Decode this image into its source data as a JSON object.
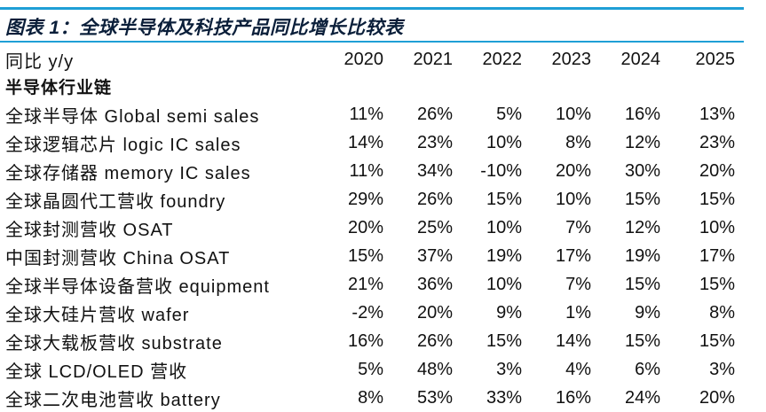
{
  "title": "图表 1：全球半导体及科技产品同比增长比较表",
  "header": {
    "label": "同比 y/y",
    "years": [
      "2020",
      "2021",
      "2022",
      "2023",
      "2024",
      "2025"
    ]
  },
  "section": "半导体行业链",
  "rows": [
    {
      "label": "全球半导体 Global semi sales",
      "values": [
        "11%",
        "26%",
        "5%",
        "10%",
        "16%",
        "13%"
      ]
    },
    {
      "label": "全球逻辑芯片 logic IC sales",
      "values": [
        "14%",
        "23%",
        "10%",
        "8%",
        "12%",
        "23%"
      ]
    },
    {
      "label": "全球存储器 memory IC sales",
      "values": [
        "11%",
        "34%",
        "-10%",
        "20%",
        "30%",
        "20%"
      ]
    },
    {
      "label": "全球晶圆代工营收 foundry",
      "values": [
        "29%",
        "26%",
        "15%",
        "10%",
        "15%",
        "15%"
      ]
    },
    {
      "label": "全球封测营收 OSAT",
      "values": [
        "20%",
        "25%",
        "10%",
        "7%",
        "12%",
        "10%"
      ]
    },
    {
      "label": "中国封测营收 China OSAT",
      "values": [
        "15%",
        "37%",
        "19%",
        "17%",
        "19%",
        "17%"
      ]
    },
    {
      "label": "全球半导体设备营收 equipment",
      "values": [
        "21%",
        "36%",
        "10%",
        "7%",
        "15%",
        "15%"
      ]
    },
    {
      "label": "全球大硅片营收 wafer",
      "values": [
        "-2%",
        "20%",
        "9%",
        "1%",
        "9%",
        "8%"
      ]
    },
    {
      "label": "全球大载板营收 substrate",
      "values": [
        "16%",
        "26%",
        "15%",
        "14%",
        "15%",
        "15%"
      ]
    },
    {
      "label": "全球 LCD/OLED 营收",
      "values": [
        "5%",
        "48%",
        "3%",
        "4%",
        "6%",
        "3%"
      ]
    },
    {
      "label": "全球二次电池营收 battery",
      "values": [
        "8%",
        "53%",
        "33%",
        "16%",
        "24%",
        "20%"
      ]
    }
  ]
}
